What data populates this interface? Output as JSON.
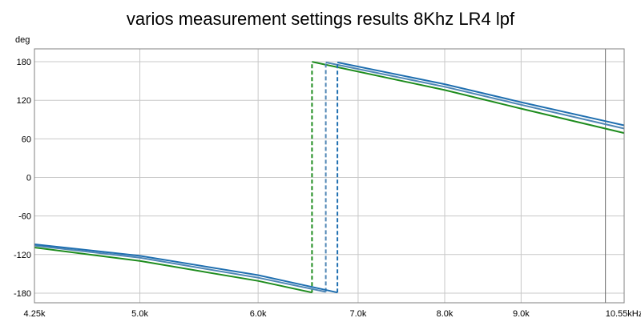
{
  "chart_data": {
    "type": "line",
    "title": "varios measurement settings results 8Khz LR4 lpf",
    "ylabel": "deg",
    "xlabel": "",
    "x_scale": "log",
    "xlim": [
      4.25,
      10.55
    ],
    "ylim": [
      -195,
      200
    ],
    "grid": true,
    "yticks": [
      180,
      120,
      60,
      0,
      -60,
      -120,
      -180
    ],
    "ytick_labels": [
      "180",
      "120",
      "60",
      "0",
      "-60",
      "-120",
      "-180"
    ],
    "xticks": [
      4.25,
      5.0,
      6.0,
      7.0,
      8.0,
      9.0,
      10.55
    ],
    "xtick_labels": [
      "4.25k",
      "5.0k",
      "6.0k",
      "7.0k",
      "8.0k",
      "9.0k",
      "10.55kHz"
    ],
    "marker_x": 10.25,
    "series": [
      {
        "color": "#1f6fb0",
        "x": [
          4.25,
          5.0,
          6.0,
          6.78,
          6.78,
          8.0,
          9.0,
          10.55
        ],
        "y": [
          -104,
          -122,
          -152,
          -179,
          179,
          145,
          117,
          81
        ],
        "dashed_jump": true
      },
      {
        "color": "#4f86b5",
        "x": [
          4.25,
          5.0,
          6.0,
          6.66,
          6.66,
          8.0,
          9.0,
          10.55
        ],
        "y": [
          -106,
          -125,
          -156,
          -178,
          179,
          141,
          113,
          76
        ],
        "dashed_jump": true
      },
      {
        "color": "#1e8c1e",
        "x": [
          4.25,
          5.0,
          6.0,
          6.52,
          6.52,
          8.0,
          9.0,
          10.55
        ],
        "y": [
          -109,
          -130,
          -161,
          -179,
          180,
          136,
          107,
          69
        ],
        "dashed_jump": true
      }
    ]
  }
}
